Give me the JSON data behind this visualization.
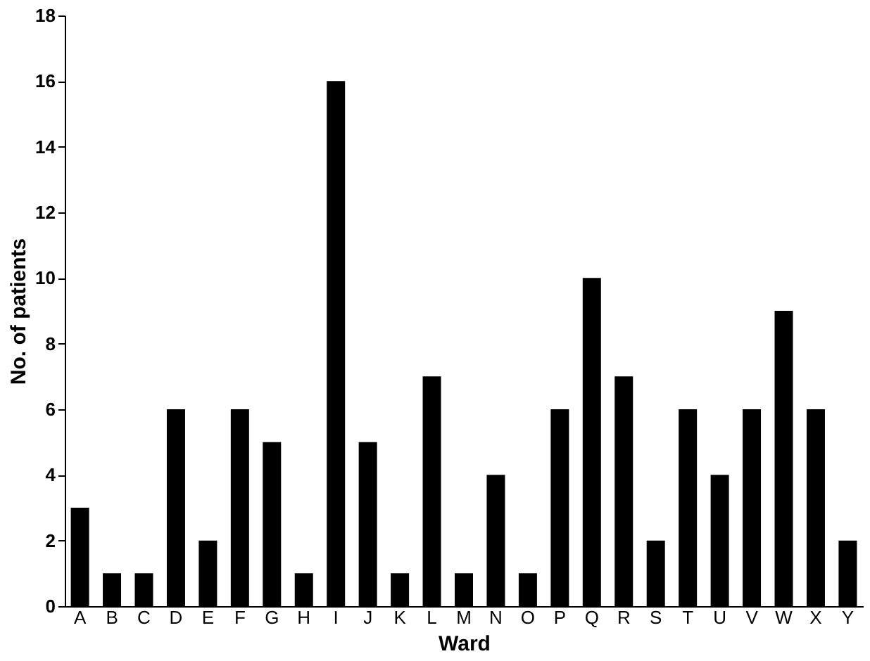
{
  "chart_data": {
    "type": "bar",
    "xlabel": "Ward",
    "ylabel": "No. of patients",
    "categories": [
      "A",
      "B",
      "C",
      "D",
      "E",
      "F",
      "G",
      "H",
      "I",
      "J",
      "K",
      "L",
      "M",
      "N",
      "O",
      "P",
      "Q",
      "R",
      "S",
      "T",
      "U",
      "V",
      "W",
      "X",
      "Y"
    ],
    "values": [
      3,
      1,
      1,
      6,
      2,
      6,
      5,
      1,
      16,
      5,
      1,
      7,
      1,
      4,
      1,
      6,
      10,
      7,
      2,
      6,
      4,
      6,
      9,
      6,
      2
    ],
    "color": "#000000",
    "ylim": [
      0,
      18
    ],
    "yticks": [
      0,
      2,
      4,
      6,
      8,
      10,
      12,
      14,
      16,
      18
    ],
    "grid": false
  }
}
